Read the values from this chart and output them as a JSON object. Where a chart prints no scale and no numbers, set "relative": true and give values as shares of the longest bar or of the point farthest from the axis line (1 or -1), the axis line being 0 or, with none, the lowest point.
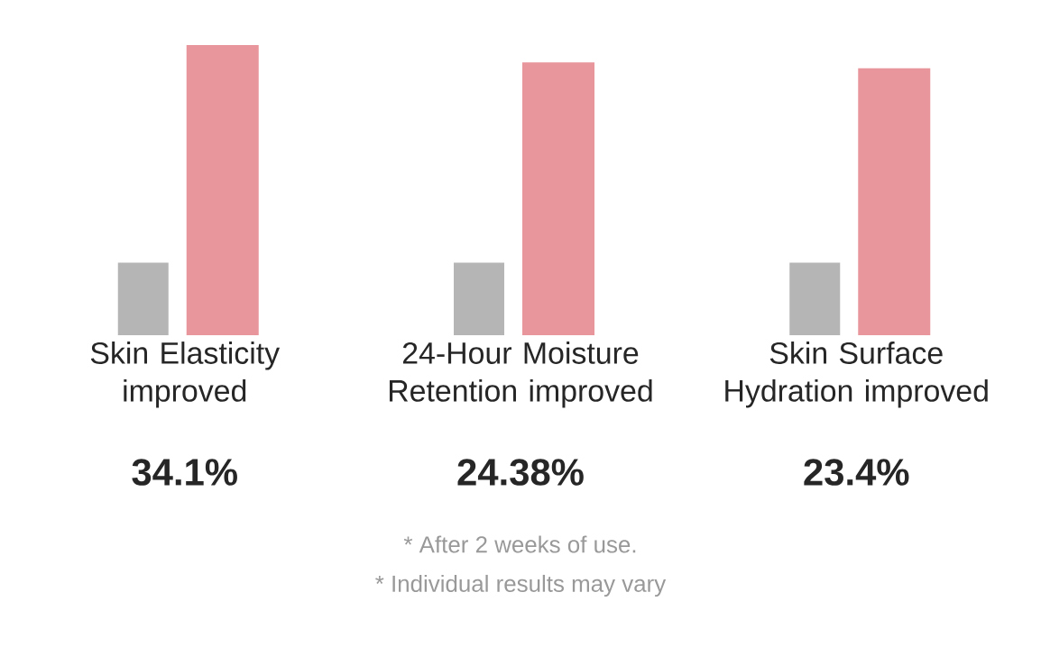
{
  "chart_data": {
    "type": "bar",
    "relative": true,
    "categories": [
      "Skin Elasticity improved",
      "24-Hour Moisture Retention improved",
      "Skin Surface Hydration improved"
    ],
    "series": [
      {
        "color": "#b5b5b5",
        "values": [
          0.25,
          0.25,
          0.25
        ]
      },
      {
        "color": "#e8959b",
        "values": [
          1,
          0.94,
          0.92
        ]
      }
    ],
    "annotations": [
      "34.1%",
      "24.38%",
      "23.4%",
      "* After 2 weeks of use.",
      "* Individual results may vary"
    ]
  }
}
